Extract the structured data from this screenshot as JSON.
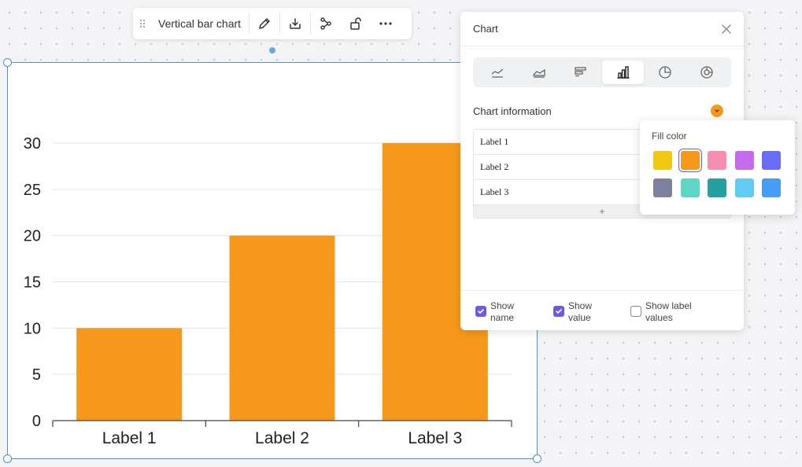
{
  "toolbar": {
    "title": "Vertical bar chart",
    "icons": [
      "drag-handle-icon",
      "pencil-icon",
      "download-icon",
      "connect-icon",
      "unlock-icon",
      "more-icon"
    ]
  },
  "panel": {
    "title": "Chart",
    "chart_types": [
      "line",
      "area",
      "horizontal-bar",
      "vertical-bar",
      "pie",
      "donut"
    ],
    "active_type": "vertical-bar",
    "info_label": "Chart information",
    "rows": [
      {
        "label": "Label 1"
      },
      {
        "label": "Label 2"
      },
      {
        "label": "Label 3"
      }
    ],
    "add_label": "+",
    "options": [
      {
        "label": "Show name",
        "checked": true
      },
      {
        "label": "Show value",
        "checked": true
      },
      {
        "label": "Show label values",
        "checked": false
      }
    ]
  },
  "fill": {
    "title": "Fill color",
    "selected": "#f5981b",
    "colors": [
      "#f0c814",
      "#f5981b",
      "#f78db1",
      "#c36be8",
      "#6a6ef7",
      "#7e80a0",
      "#5dd6c6",
      "#24a0a0",
      "#62cbf2",
      "#479ef5"
    ]
  },
  "colors": {
    "accent": "#6b5ce7",
    "bar": "#f5981b",
    "selection": "#4a90d9"
  },
  "chart_data": {
    "type": "bar",
    "categories": [
      "Label 1",
      "Label 2",
      "Label 3"
    ],
    "values": [
      10,
      20,
      30
    ],
    "ylim": [
      0,
      30
    ],
    "yticks": [
      "0",
      "5",
      "10",
      "15",
      "20",
      "25",
      "30"
    ],
    "grid": true
  }
}
